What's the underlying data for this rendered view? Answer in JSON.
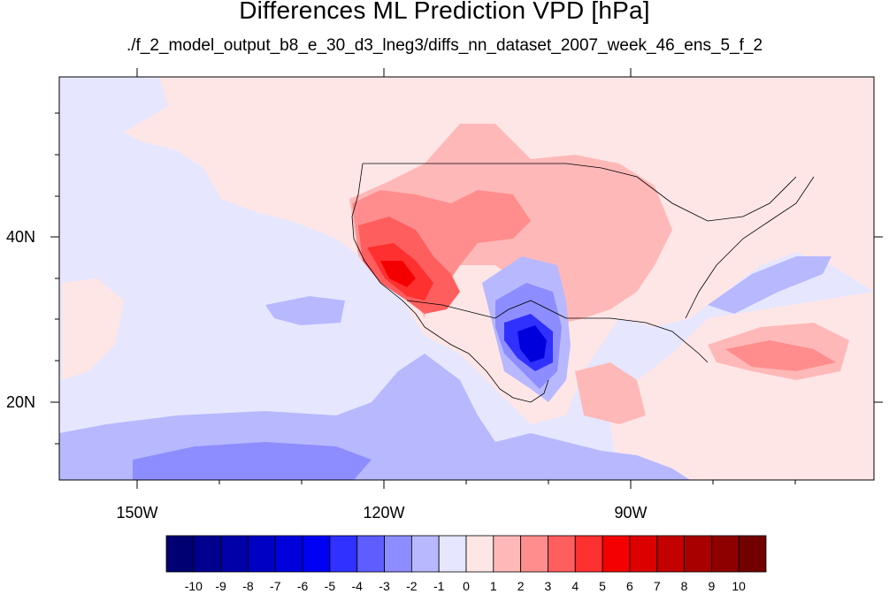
{
  "title": "Differences ML Prediction VPD [hPa]",
  "subtitle": "./f_2_model_output_b8_e_30_d3_lneg3/diffs_nn_dataset_2007_week_46_ens_5_f_2",
  "lon_labels": [
    "150W",
    "120W",
    "90W"
  ],
  "lat_labels": [
    "40N",
    "20N"
  ],
  "colorbar": {
    "labels": [
      "-10",
      "-9",
      "-8",
      "-7",
      "-6",
      "-5",
      "-4",
      "-3",
      "-2",
      "-1",
      "0",
      "1",
      "2",
      "3",
      "4",
      "5",
      "6",
      "7",
      "8",
      "9",
      "10"
    ],
    "colors": [
      "#000072",
      "#00008e",
      "#0000a8",
      "#0000c4",
      "#0000dd",
      "#0000f5",
      "#3030ff",
      "#5e5eff",
      "#8d8dff",
      "#b8b8ff",
      "#e6e6ff",
      "#ffe6e6",
      "#ffb8b8",
      "#ff8d8d",
      "#ff5e5e",
      "#ff3030",
      "#f50000",
      "#dd0000",
      "#c40000",
      "#a80000",
      "#8e0000",
      "#720000"
    ]
  },
  "map_colors": {
    "neutral_blue": "#e6e6ff",
    "neutral_red": "#ffe6e6",
    "light_red": "#ffb8b8",
    "mid_red": "#ff8d8d",
    "red": "#ff5e5e",
    "strong_red": "#ff3030",
    "vivid_red": "#f50000",
    "light_blue": "#b8b8ff",
    "mid_blue": "#8d8dff",
    "blue": "#5e5eff",
    "strong_blue": "#3030ff",
    "deep_blue": "#0000dd"
  }
}
